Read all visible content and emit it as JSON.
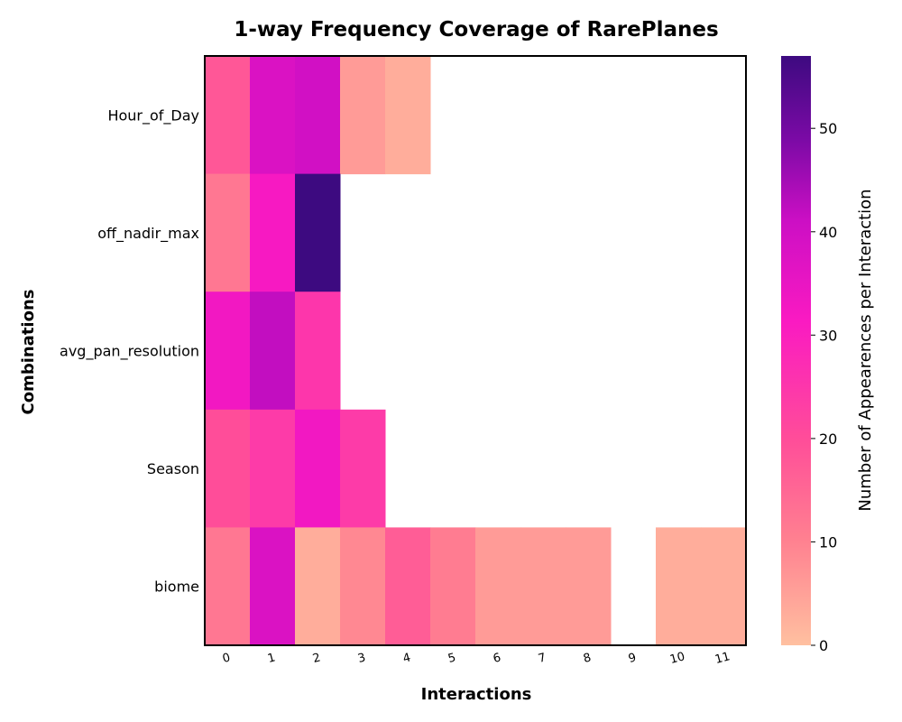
{
  "chart_data": {
    "type": "heatmap",
    "title": "1-way Frequency Coverage of RarePlanes",
    "xlabel": "Interactions",
    "ylabel": "Combinations",
    "rows": [
      "Hour_of_Day",
      "off_nadir_max",
      "avg_pan_resolution",
      "Season",
      "biome"
    ],
    "columns": [
      "0",
      "1",
      "2",
      "3",
      "4",
      "5",
      "6",
      "7",
      "8",
      "9",
      "10",
      "11"
    ],
    "values": [
      [
        18,
        38,
        40,
        6,
        3,
        null,
        null,
        null,
        null,
        null,
        null,
        null
      ],
      [
        12,
        32,
        57,
        null,
        null,
        null,
        null,
        null,
        null,
        null,
        null,
        null
      ],
      [
        33,
        42,
        25,
        null,
        null,
        null,
        null,
        null,
        null,
        null,
        null,
        null
      ],
      [
        20,
        24,
        33,
        24,
        null,
        null,
        null,
        null,
        null,
        null,
        null,
        null
      ],
      [
        12,
        38,
        3,
        9,
        17,
        11,
        6,
        6,
        6,
        null,
        3,
        3
      ]
    ],
    "colorbar": {
      "label": "Number of Appearences per Interaction",
      "min": 0,
      "max": 57,
      "ticks": [
        "0",
        "10",
        "20",
        "30",
        "40",
        "50"
      ]
    },
    "grid": false
  }
}
